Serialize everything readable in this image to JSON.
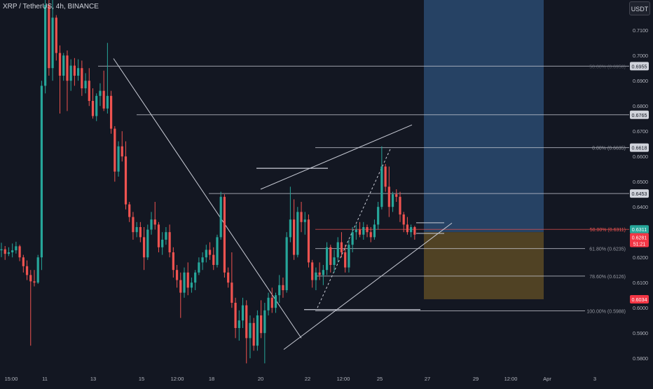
{
  "header": {
    "symbol_line": "XRP / TetherUS, 4h, BINANCE",
    "currency": "USDT"
  },
  "colors": {
    "background": "#131722",
    "up": "#26a69a",
    "down": "#ef5350",
    "text": "#b2b5be",
    "line": "#c9ccd6",
    "target_zone": "#2a4a70",
    "stop_zone": "#5c4a25",
    "current_price": "#f23645"
  },
  "chart_data": {
    "type": "candlestick",
    "ylim": [
      0.577,
      0.722
    ],
    "y_ticks": [
      "0.7100",
      "0.7000",
      "0.6900",
      "0.6800",
      "0.6700",
      "0.6600",
      "0.6500",
      "0.6400",
      "0.6300",
      "0.6200",
      "0.6100",
      "0.6000",
      "0.5900",
      "0.5800"
    ],
    "x_ticks": [
      "15:00",
      "11",
      "13",
      "15",
      "12:00",
      "18",
      "20",
      "22",
      "12:00",
      "25",
      "27",
      "29",
      "12:00",
      "Apr",
      "3"
    ],
    "series": [
      {
        "ohlc": [
          [
            0.6228,
            0.6258,
            0.6201,
            0.6232
          ],
          [
            0.6232,
            0.6245,
            0.619,
            0.6214
          ],
          [
            0.6214,
            0.624,
            0.6205,
            0.622
          ],
          [
            0.622,
            0.6255,
            0.62,
            0.6228
          ],
          [
            0.6228,
            0.6262,
            0.6215,
            0.6244
          ],
          [
            0.6244,
            0.625,
            0.6185,
            0.62
          ],
          [
            0.62,
            0.621,
            0.614,
            0.6165
          ],
          [
            0.6165,
            0.6188,
            0.611,
            0.613
          ],
          [
            0.613,
            0.615,
            0.585,
            0.6105
          ],
          [
            0.6105,
            0.615,
            0.6085,
            0.61
          ],
          [
            0.61,
            0.621,
            0.6095,
            0.62
          ],
          [
            0.62,
            0.69,
            0.615,
            0.688
          ],
          [
            0.688,
            0.725,
            0.685,
            0.72
          ],
          [
            0.72,
            0.722,
            0.692,
            0.695
          ],
          [
            0.695,
            0.725,
            0.69,
            0.715
          ],
          [
            0.715,
            0.716,
            0.698,
            0.701
          ],
          [
            0.701,
            0.704,
            0.677,
            0.692
          ],
          [
            0.692,
            0.701,
            0.69,
            0.7
          ],
          [
            0.7,
            0.702,
            0.678,
            0.69
          ],
          [
            0.69,
            0.6985,
            0.686,
            0.696
          ],
          [
            0.696,
            0.699,
            0.688,
            0.692
          ],
          [
            0.692,
            0.6985,
            0.69,
            0.695
          ],
          [
            0.695,
            0.698,
            0.684,
            0.687
          ],
          [
            0.687,
            0.693,
            0.685,
            0.69
          ],
          [
            0.69,
            0.695,
            0.68,
            0.682
          ],
          [
            0.682,
            0.687,
            0.675,
            0.676
          ],
          [
            0.676,
            0.685,
            0.674,
            0.684
          ],
          [
            0.684,
            0.689,
            0.68,
            0.686
          ],
          [
            0.686,
            0.694,
            0.678,
            0.679
          ],
          [
            0.679,
            0.705,
            0.677,
            0.684
          ],
          [
            0.684,
            0.686,
            0.669,
            0.671
          ],
          [
            0.671,
            0.672,
            0.65,
            0.654
          ],
          [
            0.654,
            0.666,
            0.652,
            0.664
          ],
          [
            0.664,
            0.67,
            0.658,
            0.66
          ],
          [
            0.66,
            0.666,
            0.639,
            0.641
          ],
          [
            0.641,
            0.642,
            0.634,
            0.636
          ],
          [
            0.636,
            0.638,
            0.627,
            0.63
          ],
          [
            0.63,
            0.634,
            0.628,
            0.632
          ],
          [
            0.632,
            0.634,
            0.626,
            0.628
          ],
          [
            0.628,
            0.632,
            0.615,
            0.62
          ],
          [
            0.62,
            0.633,
            0.619,
            0.631
          ],
          [
            0.631,
            0.638,
            0.629,
            0.635
          ],
          [
            0.635,
            0.642,
            0.631,
            0.633
          ],
          [
            0.633,
            0.634,
            0.622,
            0.624
          ],
          [
            0.624,
            0.63,
            0.621,
            0.627
          ],
          [
            0.627,
            0.632,
            0.625,
            0.63
          ],
          [
            0.63,
            0.633,
            0.62,
            0.622
          ],
          [
            0.622,
            0.624,
            0.612,
            0.615
          ],
          [
            0.615,
            0.617,
            0.608,
            0.611
          ],
          [
            0.611,
            0.614,
            0.596,
            0.606
          ],
          [
            0.606,
            0.616,
            0.604,
            0.614
          ],
          [
            0.614,
            0.618,
            0.605,
            0.608
          ],
          [
            0.608,
            0.612,
            0.606,
            0.61
          ],
          [
            0.61,
            0.615,
            0.607,
            0.614
          ],
          [
            0.614,
            0.62,
            0.613,
            0.618
          ],
          [
            0.618,
            0.622,
            0.615,
            0.62
          ],
          [
            0.62,
            0.625,
            0.618,
            0.623
          ],
          [
            0.623,
            0.626,
            0.619,
            0.621
          ],
          [
            0.621,
            0.624,
            0.615,
            0.617
          ],
          [
            0.617,
            0.629,
            0.616,
            0.628
          ],
          [
            0.628,
            0.646,
            0.627,
            0.644
          ],
          [
            0.644,
            0.645,
            0.612,
            0.614
          ],
          [
            0.614,
            0.616,
            0.608,
            0.61
          ],
          [
            0.61,
            0.622,
            0.6,
            0.602
          ],
          [
            0.602,
            0.604,
            0.588,
            0.592
          ],
          [
            0.592,
            0.599,
            0.587,
            0.595
          ],
          [
            0.595,
            0.604,
            0.592,
            0.601
          ],
          [
            0.601,
            0.603,
            0.578,
            0.588
          ],
          [
            0.588,
            0.597,
            0.58,
            0.594
          ],
          [
            0.594,
            0.596,
            0.583,
            0.585
          ],
          [
            0.585,
            0.599,
            0.583,
            0.597
          ],
          [
            0.597,
            0.603,
            0.588,
            0.59
          ],
          [
            0.59,
            0.602,
            0.578,
            0.599
          ],
          [
            0.599,
            0.606,
            0.597,
            0.604
          ],
          [
            0.604,
            0.608,
            0.598,
            0.6
          ],
          [
            0.6,
            0.606,
            0.598,
            0.605
          ],
          [
            0.605,
            0.613,
            0.602,
            0.609
          ],
          [
            0.609,
            0.612,
            0.604,
            0.607
          ],
          [
            0.607,
            0.63,
            0.606,
            0.628
          ],
          [
            0.628,
            0.648,
            0.626,
            0.635
          ],
          [
            0.635,
            0.643,
            0.619,
            0.621
          ],
          [
            0.621,
            0.64,
            0.62,
            0.638
          ],
          [
            0.638,
            0.642,
            0.63,
            0.634
          ],
          [
            0.634,
            0.638,
            0.629,
            0.635
          ],
          [
            0.635,
            0.637,
            0.616,
            0.618
          ],
          [
            0.618,
            0.619,
            0.608,
            0.611
          ],
          [
            0.611,
            0.616,
            0.607,
            0.614
          ],
          [
            0.614,
            0.618,
            0.611,
            0.613
          ],
          [
            0.613,
            0.617,
            0.609,
            0.615
          ],
          [
            0.615,
            0.626,
            0.613,
            0.624
          ],
          [
            0.624,
            0.625,
            0.614,
            0.617
          ],
          [
            0.617,
            0.623,
            0.614,
            0.62
          ],
          [
            0.62,
            0.628,
            0.618,
            0.626
          ],
          [
            0.626,
            0.63,
            0.62,
            0.622
          ],
          [
            0.622,
            0.625,
            0.614,
            0.616
          ],
          [
            0.616,
            0.627,
            0.614,
            0.625
          ],
          [
            0.625,
            0.632,
            0.622,
            0.63
          ],
          [
            0.63,
            0.633,
            0.627,
            0.631
          ],
          [
            0.631,
            0.634,
            0.628,
            0.629
          ],
          [
            0.629,
            0.634,
            0.627,
            0.632
          ],
          [
            0.632,
            0.633,
            0.628,
            0.63
          ],
          [
            0.63,
            0.632,
            0.626,
            0.628
          ],
          [
            0.628,
            0.635,
            0.627,
            0.633
          ],
          [
            0.633,
            0.642,
            0.631,
            0.64
          ],
          [
            0.64,
            0.664,
            0.639,
            0.656
          ],
          [
            0.656,
            0.657,
            0.646,
            0.648
          ],
          [
            0.648,
            0.656,
            0.636,
            0.64
          ],
          [
            0.64,
            0.646,
            0.638,
            0.645
          ],
          [
            0.645,
            0.647,
            0.642,
            0.644
          ],
          [
            0.644,
            0.646,
            0.634,
            0.637
          ],
          [
            0.637,
            0.638,
            0.63,
            0.633
          ],
          [
            0.633,
            0.636,
            0.629,
            0.63
          ],
          [
            0.63,
            0.633,
            0.628,
            0.632
          ],
          [
            0.632,
            0.6325,
            0.627,
            0.629
          ]
        ]
      }
    ],
    "current_price": {
      "value": "0.6311",
      "countdown_value": "0.6281",
      "countdown_time": "51:21"
    },
    "fib_levels": [
      {
        "label": "0.00% (0.6635)",
        "value": 0.6635,
        "marker": "0.6618"
      },
      {
        "label": "50.00% (0.6958)",
        "value": 0.6958,
        "marker": "0.6955"
      },
      {
        "label": "50.00% (0.6311)",
        "value": 0.6311
      },
      {
        "label": "61.80% (0.6235)",
        "value": 0.6235
      },
      {
        "label": "78.60% (0.6126)",
        "value": 0.6126
      },
      {
        "label": "100.00% (0.5988)",
        "value": 0.5988
      }
    ],
    "horizontal_lines": [
      {
        "value": 0.6765,
        "marker": "0.6765"
      },
      {
        "value": 0.6453,
        "marker": "0.6453"
      }
    ],
    "position_box": {
      "target": 0.722,
      "entry": 0.63,
      "stop": 0.6034,
      "stop_marker": "0.6034"
    }
  }
}
